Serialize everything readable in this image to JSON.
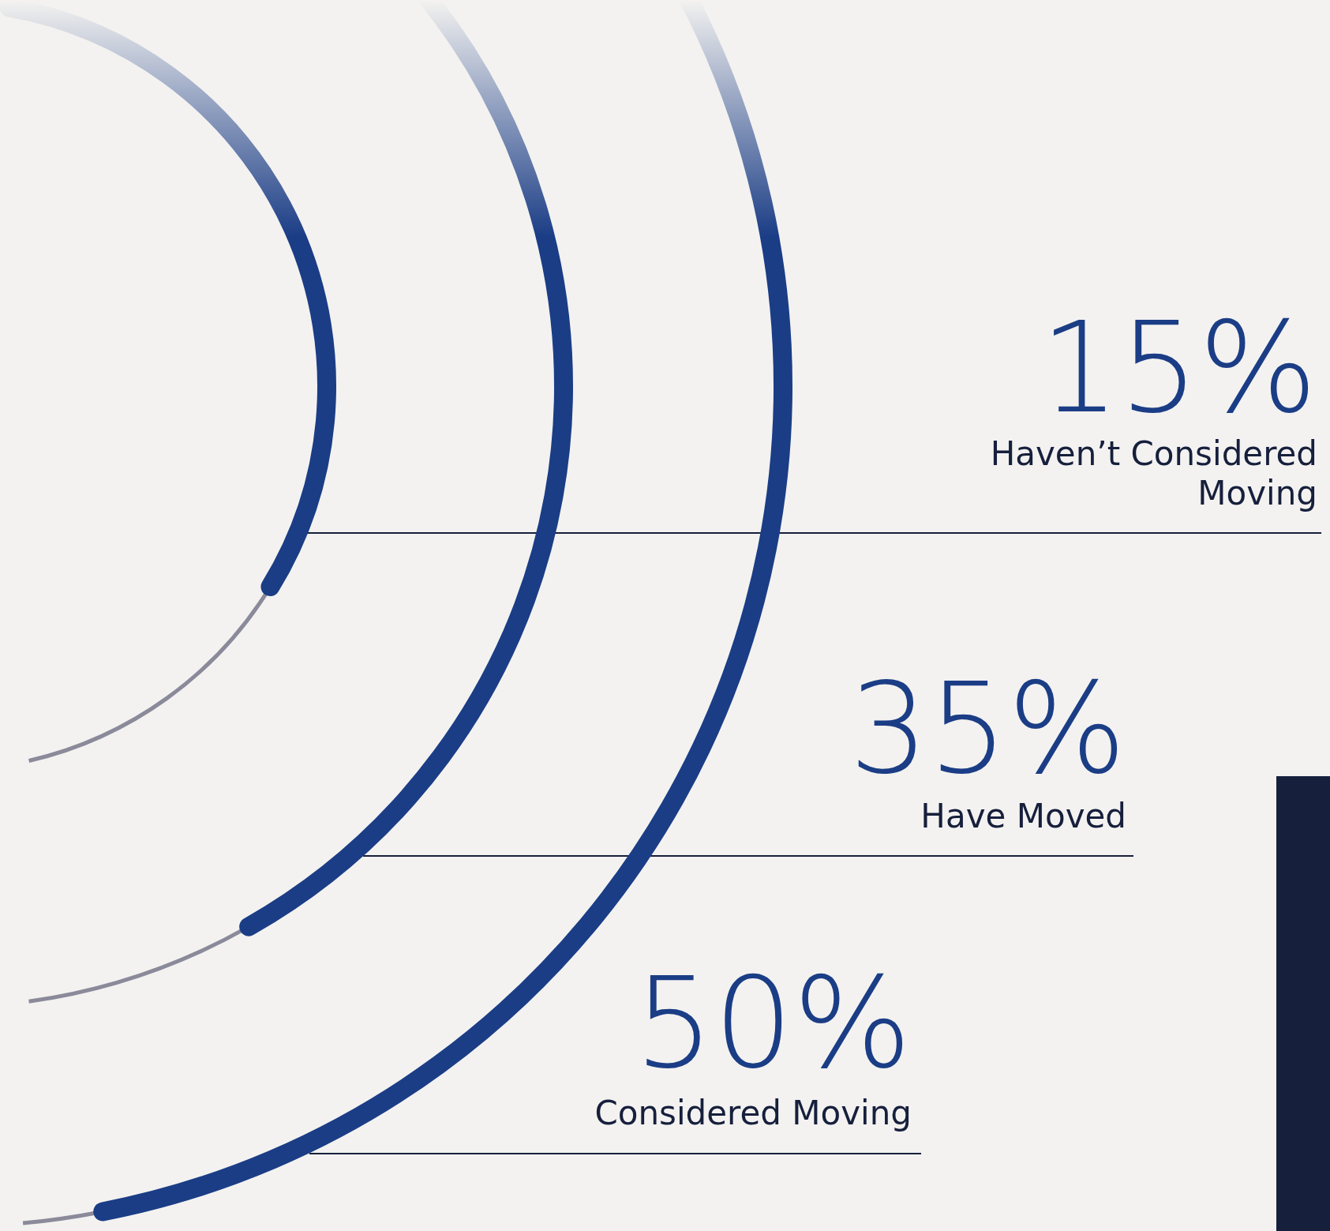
{
  "chart_data": {
    "type": "other",
    "categories": [
      "Haven’t Considered Moving",
      "Have Moved",
      "Considered Moving"
    ],
    "values": [
      15,
      35,
      50
    ],
    "value_labels": [
      "15%",
      "35%",
      "50%"
    ],
    "color": "#1b3d86"
  }
}
